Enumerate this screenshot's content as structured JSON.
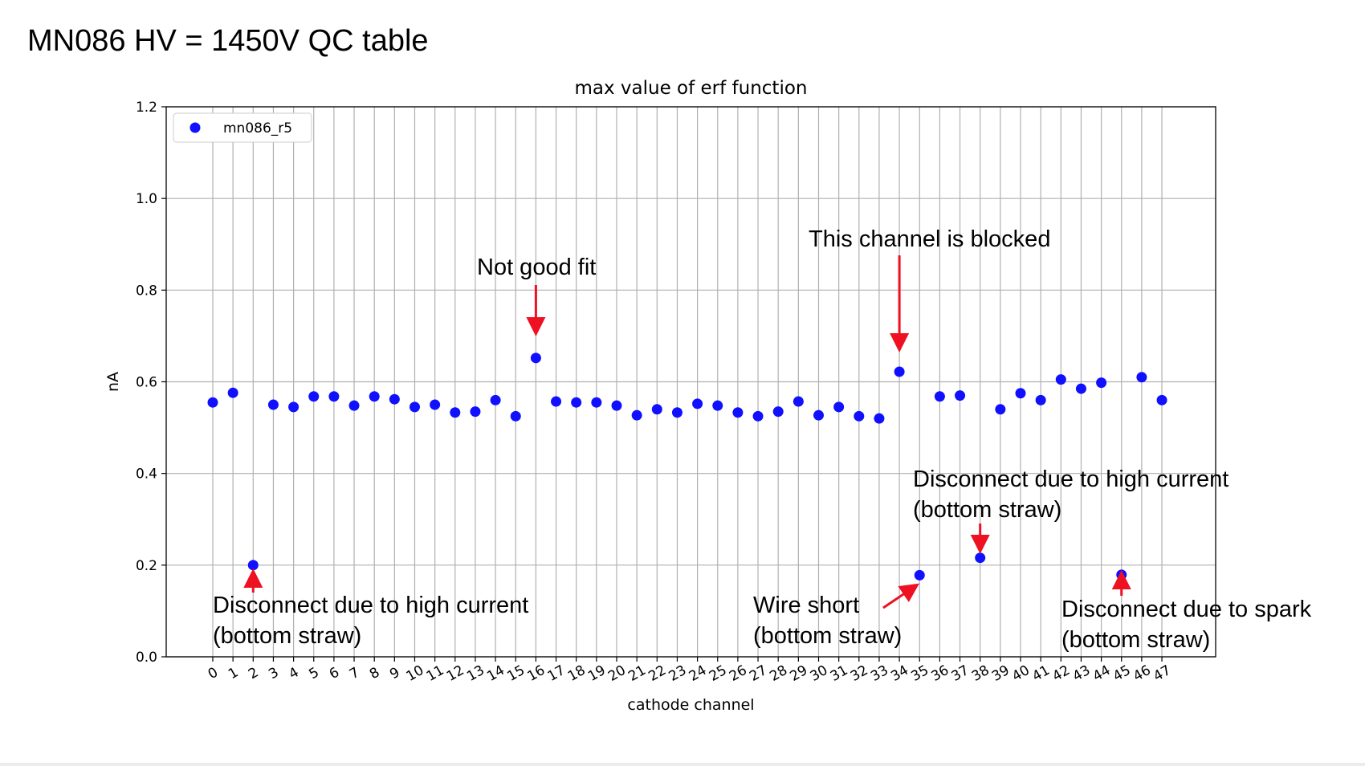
{
  "slide": {
    "title": "MN086 HV = 1450V QC table"
  },
  "colors": {
    "points": "#1010ff",
    "arrows": "#ee1122",
    "grid": "#b0b0b0"
  },
  "chart_data": {
    "type": "scatter",
    "title": "max value of erf function",
    "xlabel": "cathode channel",
    "ylabel": "nA",
    "ylim": [
      0.0,
      1.2
    ],
    "yticks": [
      "0.0",
      "0.2",
      "0.4",
      "0.6",
      "0.8",
      "1.0",
      "1.2"
    ],
    "xticks": [
      "0",
      "1",
      "2",
      "3",
      "4",
      "5",
      "6",
      "7",
      "8",
      "9",
      "10",
      "11",
      "12",
      "13",
      "14",
      "15",
      "16",
      "17",
      "18",
      "19",
      "20",
      "21",
      "22",
      "23",
      "24",
      "25",
      "26",
      "27",
      "28",
      "29",
      "30",
      "31",
      "32",
      "33",
      "34",
      "35",
      "36",
      "37",
      "38",
      "39",
      "40",
      "41",
      "42",
      "43",
      "44",
      "45",
      "46",
      "47"
    ],
    "grid": true,
    "legend": "top-left",
    "series": [
      {
        "name": "mn086_r5",
        "x": [
          0,
          1,
          2,
          3,
          4,
          5,
          6,
          7,
          8,
          9,
          10,
          11,
          12,
          13,
          14,
          15,
          16,
          17,
          18,
          19,
          20,
          21,
          22,
          23,
          24,
          25,
          26,
          27,
          28,
          29,
          30,
          31,
          32,
          33,
          34,
          35,
          36,
          37,
          38,
          39,
          40,
          41,
          42,
          43,
          44,
          45,
          46,
          47
        ],
        "y": [
          0.555,
          0.576,
          0.2,
          0.55,
          0.545,
          0.568,
          0.568,
          0.548,
          0.568,
          0.562,
          0.545,
          0.55,
          0.533,
          0.535,
          0.56,
          0.525,
          0.652,
          0.557,
          0.555,
          0.555,
          0.548,
          0.527,
          0.54,
          0.533,
          0.552,
          0.548,
          0.533,
          0.525,
          0.535,
          0.557,
          0.527,
          0.545,
          0.525,
          0.52,
          0.622,
          0.178,
          0.568,
          0.57,
          0.216,
          0.54,
          0.575,
          0.56,
          0.605,
          0.585,
          0.598,
          0.179,
          0.61,
          0.56
        ]
      }
    ],
    "annotations": [
      {
        "lines": [
          "Disconnect due to high current",
          "(bottom straw)"
        ],
        "channel": 2
      },
      {
        "lines": [
          "Not good fit"
        ],
        "channel": 16
      },
      {
        "lines": [
          "This channel is blocked"
        ],
        "channel": 34
      },
      {
        "lines": [
          "Wire short",
          "(bottom straw)"
        ],
        "channel": 35
      },
      {
        "lines": [
          "Disconnect due to high current",
          "(bottom straw)"
        ],
        "channel": 38
      },
      {
        "lines": [
          "Disconnect due to spark",
          "(bottom straw)"
        ],
        "channel": 45
      }
    ]
  }
}
